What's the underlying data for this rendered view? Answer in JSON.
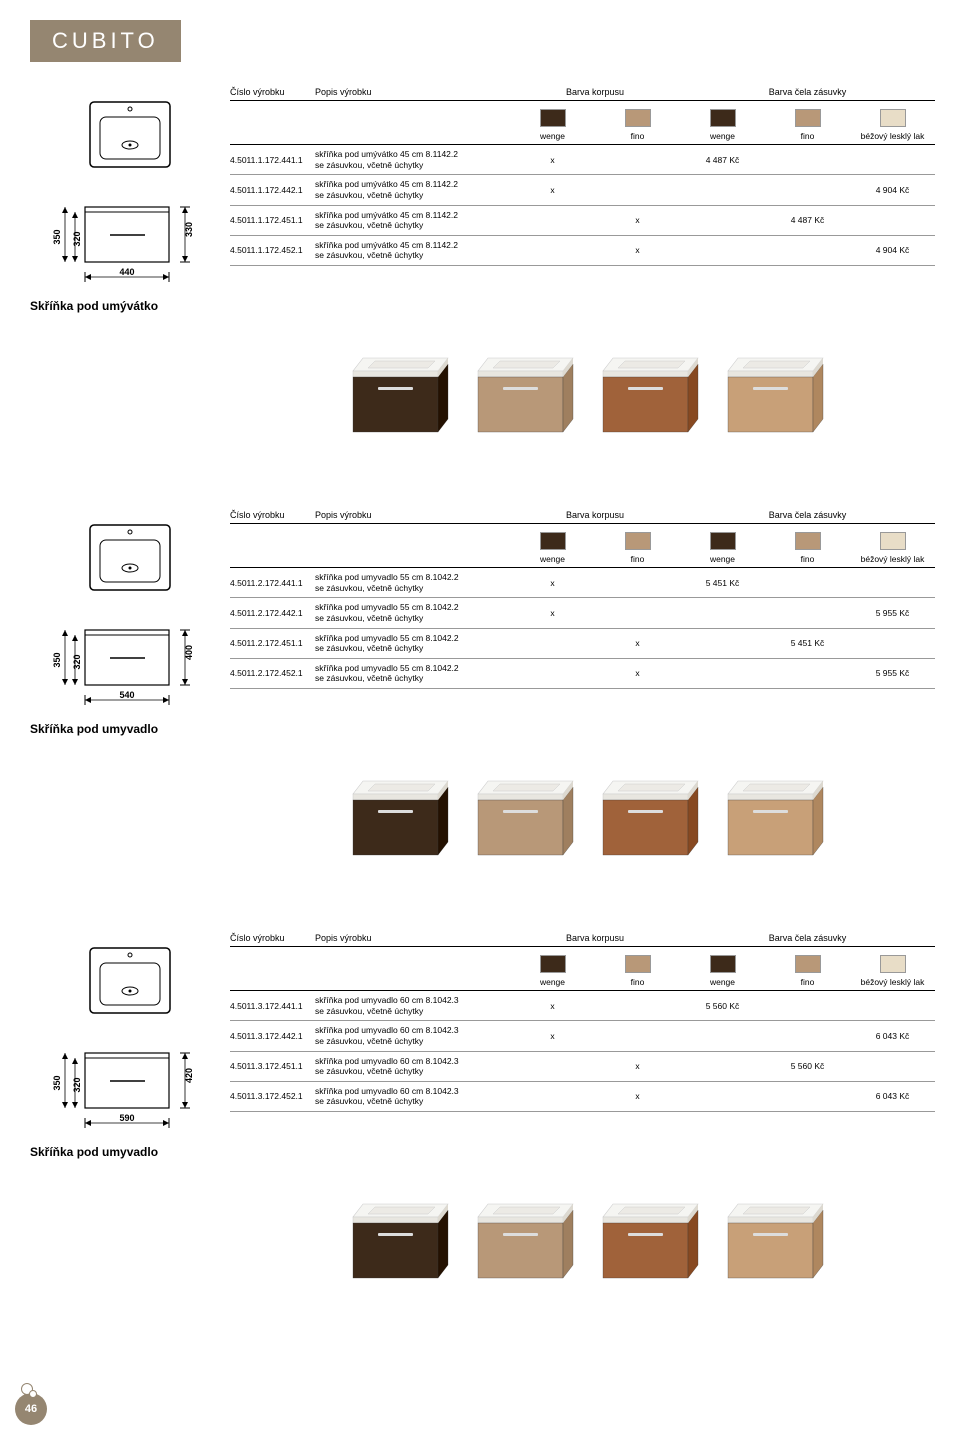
{
  "brand": "CUBITO",
  "pageNumber": "46",
  "swatchColors": {
    "wenge": "#3d2a1a",
    "fino": "#b89878",
    "beige": "#e8ddc7"
  },
  "colLabels": [
    "wenge",
    "fino",
    "wenge",
    "fino",
    "béžový lesklý lak"
  ],
  "headers": {
    "code": "Číslo výrobku",
    "desc": "Popis výrobku",
    "korpus": "Barva korpusu",
    "cela": "Barva čela zásuvky"
  },
  "sections": [
    {
      "caption": "Skříňka pod umývátko",
      "dims": {
        "w": "440",
        "h": "330",
        "side1": "350",
        "side2": "320"
      },
      "rows": [
        {
          "code": "4.5011.1.172.441.1",
          "desc1": "skříňka pod umývátko 45 cm 8.1142.2",
          "desc2": "se zásuvkou, včetně úchytky",
          "cells": [
            "x",
            "",
            "4 487 Kč",
            "",
            ""
          ]
        },
        {
          "code": "4.5011.1.172.442.1",
          "desc1": "skříňka pod umývátko 45 cm 8.1142.2",
          "desc2": "se zásuvkou, včetně úchytky",
          "cells": [
            "x",
            "",
            "",
            "",
            "4 904 Kč"
          ]
        },
        {
          "code": "4.5011.1.172.451.1",
          "desc1": "skříňka pod umývátko 45 cm 8.1142.2",
          "desc2": "se zásuvkou, včetně úchytky",
          "cells": [
            "",
            "x",
            "",
            "4 487 Kč",
            ""
          ]
        },
        {
          "code": "4.5011.1.172.452.1",
          "desc1": "skříňka pod umývátko 45 cm 8.1142.2",
          "desc2": "se zásuvkou, včetně úchytky",
          "cells": [
            "",
            "x",
            "",
            "",
            "4 904 Kč"
          ]
        }
      ],
      "cabinets": [
        "#3d2a1a",
        "#b89878",
        "#a0623a",
        "#c8a078"
      ]
    },
    {
      "caption": "Skříňka pod umyvadlo",
      "dims": {
        "w": "540",
        "h": "400",
        "side1": "350",
        "side2": "320"
      },
      "rows": [
        {
          "code": "4.5011.2.172.441.1",
          "desc1": "skříňka pod umyvadlo 55 cm 8.1042.2",
          "desc2": "se zásuvkou, včetně úchytky",
          "cells": [
            "x",
            "",
            "5 451 Kč",
            "",
            ""
          ]
        },
        {
          "code": "4.5011.2.172.442.1",
          "desc1": "skříňka pod umyvadlo 55 cm 8.1042.2",
          "desc2": "se zásuvkou, včetně úchytky",
          "cells": [
            "x",
            "",
            "",
            "",
            "5 955 Kč"
          ]
        },
        {
          "code": "4.5011.2.172.451.1",
          "desc1": "skříňka pod umyvadlo 55 cm 8.1042.2",
          "desc2": "se zásuvkou, včetně úchytky",
          "cells": [
            "",
            "x",
            "",
            "5 451 Kč",
            ""
          ]
        },
        {
          "code": "4.5011.2.172.452.1",
          "desc1": "skříňka pod umyvadlo 55 cm 8.1042.2",
          "desc2": "se zásuvkou, včetně úchytky",
          "cells": [
            "",
            "x",
            "",
            "",
            "5 955 Kč"
          ]
        }
      ],
      "cabinets": [
        "#3d2a1a",
        "#b89878",
        "#a0623a",
        "#c8a078"
      ]
    },
    {
      "caption": "Skříňka pod umyvadlo",
      "dims": {
        "w": "590",
        "h": "420",
        "side1": "350",
        "side2": "320"
      },
      "rows": [
        {
          "code": "4.5011.3.172.441.1",
          "desc1": "skříňka pod umyvadlo 60 cm 8.1042.3",
          "desc2": "se zásuvkou, včetně úchytky",
          "cells": [
            "x",
            "",
            "5 560 Kč",
            "",
            ""
          ]
        },
        {
          "code": "4.5011.3.172.442.1",
          "desc1": "skříňka pod umyvadlo 60 cm 8.1042.3",
          "desc2": "se zásuvkou, včetně úchytky",
          "cells": [
            "x",
            "",
            "",
            "",
            "6 043 Kč"
          ]
        },
        {
          "code": "4.5011.3.172.451.1",
          "desc1": "skříňka pod umyvadlo 60 cm 8.1042.3",
          "desc2": "se zásuvkou, včetně úchytky",
          "cells": [
            "",
            "x",
            "",
            "5 560 Kč",
            ""
          ]
        },
        {
          "code": "4.5011.3.172.452.1",
          "desc1": "skříňka pod umyvadlo 60 cm 8.1042.3",
          "desc2": "se zásuvkou, včetně úchytky",
          "cells": [
            "",
            "x",
            "",
            "",
            "6 043 Kč"
          ]
        }
      ],
      "cabinets": [
        "#3d2a1a",
        "#b89878",
        "#a0623a",
        "#c8a078"
      ]
    }
  ]
}
